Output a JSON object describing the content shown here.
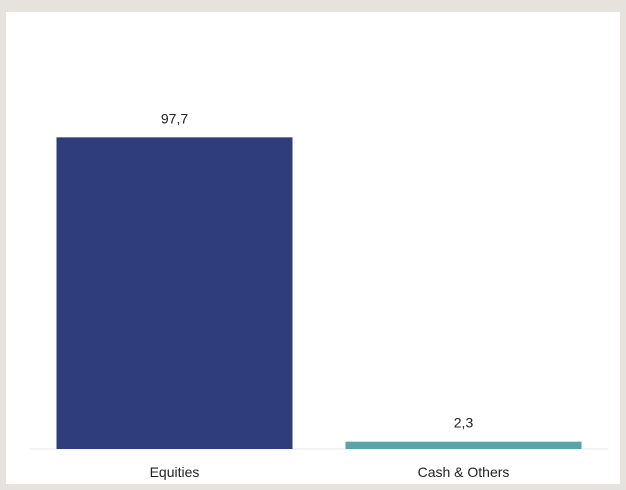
{
  "chart_data": {
    "type": "bar",
    "categories": [
      "Equities",
      "Cash & Others"
    ],
    "values": [
      97.7,
      2.3
    ],
    "value_labels": [
      "97,7",
      "2,3"
    ],
    "colors": [
      "#2f3d7c",
      "#5aa3a7"
    ],
    "ylim": [
      0,
      100
    ],
    "grid": false,
    "legend": "none"
  }
}
